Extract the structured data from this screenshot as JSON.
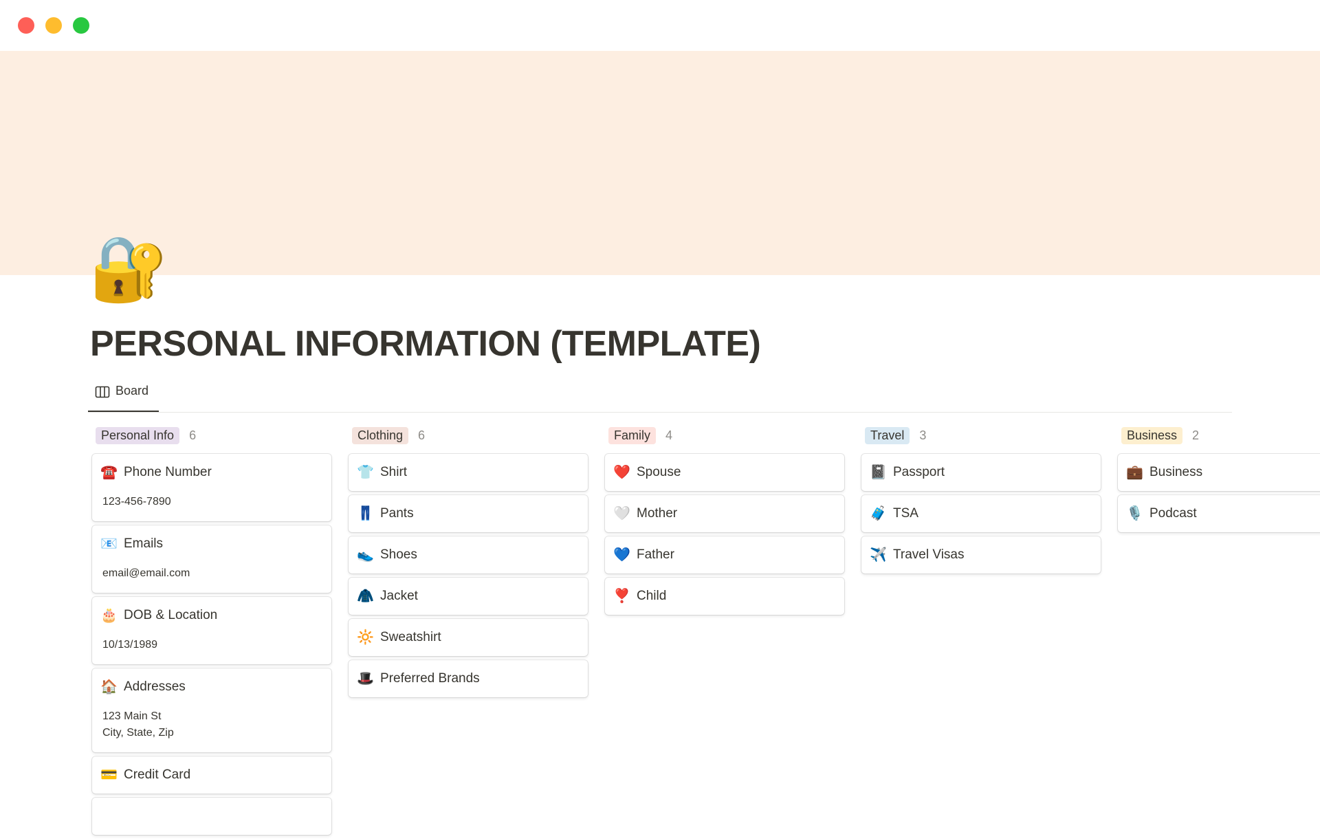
{
  "window": {
    "controls": [
      {
        "name": "close",
        "color": "#fe5f57"
      },
      {
        "name": "minimize",
        "color": "#febc2e"
      },
      {
        "name": "maximize",
        "color": "#28c840"
      }
    ]
  },
  "page": {
    "icon": "🔐",
    "title": "PERSONAL INFORMATION (TEMPLATE)",
    "cover_color": "#fdeee1"
  },
  "view": {
    "tab_label": "Board",
    "tab_icon": "board-icon"
  },
  "columns": [
    {
      "label": "Personal Info",
      "count": "6",
      "color": "#e8deee",
      "cards": [
        {
          "icon": "☎️",
          "title": "Phone Number",
          "detail": "123-456-7890"
        },
        {
          "icon": "📧",
          "title": "Emails",
          "detail": "email@email.com"
        },
        {
          "icon": "🎂",
          "title": "DOB & Location",
          "detail": "10/13/1989"
        },
        {
          "icon": "🏠",
          "title": "Addresses",
          "detail": "123 Main St\nCity, State, Zip"
        },
        {
          "icon": "💳",
          "title": "Credit Card"
        },
        {
          "icon": "",
          "title": ""
        }
      ]
    },
    {
      "label": "Clothing",
      "count": "6",
      "color": "#f4e2dc",
      "cards": [
        {
          "icon": "👕",
          "title": "Shirt"
        },
        {
          "icon": "👖",
          "title": "Pants"
        },
        {
          "icon": "👟",
          "title": "Shoes"
        },
        {
          "icon": "🧥",
          "title": "Jacket"
        },
        {
          "icon": "🔆",
          "title": "Sweatshirt"
        },
        {
          "icon": "🎩",
          "title": "Preferred Brands"
        }
      ]
    },
    {
      "label": "Family",
      "count": "4",
      "color": "#fde2de",
      "cards": [
        {
          "icon": "❤️",
          "title": "Spouse"
        },
        {
          "icon": "🤍",
          "title": "Mother"
        },
        {
          "icon": "💙",
          "title": "Father"
        },
        {
          "icon": "❣️",
          "title": "Child"
        }
      ]
    },
    {
      "label": "Travel",
      "count": "3",
      "color": "#d9e9f3",
      "cards": [
        {
          "icon": "📓",
          "title": "Passport"
        },
        {
          "icon": "🧳",
          "title": "TSA"
        },
        {
          "icon": "✈️",
          "title": "Travel Visas"
        }
      ]
    },
    {
      "label": "Business",
      "count": "2",
      "color": "#fdefcf",
      "cards": [
        {
          "icon": "💼",
          "title": "Business"
        },
        {
          "icon": "🎙️",
          "title": "Podcast"
        }
      ]
    }
  ]
}
